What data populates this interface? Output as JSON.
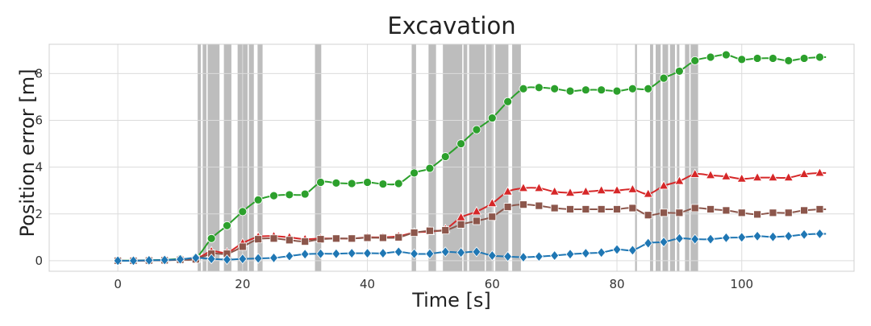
{
  "chart_data": {
    "type": "line",
    "title": "Excavation",
    "xlabel": "Time [s]",
    "ylabel": "Position error [m]",
    "xlim": [
      -11,
      118
    ],
    "ylim": [
      -0.45,
      9.25
    ],
    "xticks": [
      0,
      20,
      40,
      60,
      80,
      100
    ],
    "yticks": [
      0,
      2,
      4,
      6,
      8
    ],
    "grid": true,
    "shaded_intervals": [
      [
        12.8,
        13.3
      ],
      [
        13.6,
        14.2
      ],
      [
        14.4,
        16.3
      ],
      [
        17.0,
        18.2
      ],
      [
        19.2,
        20.8
      ],
      [
        21.0,
        21.8
      ],
      [
        22.4,
        23.2
      ],
      [
        31.6,
        32.6
      ],
      [
        47.1,
        47.8
      ],
      [
        49.8,
        51.0
      ],
      [
        52.1,
        55.2
      ],
      [
        55.4,
        56.0
      ],
      [
        56.3,
        58.8
      ],
      [
        59.0,
        60.2
      ],
      [
        60.5,
        62.6
      ],
      [
        63.2,
        64.6
      ],
      [
        82.9,
        83.2
      ],
      [
        85.3,
        85.8
      ],
      [
        86.2,
        87.0
      ],
      [
        87.3,
        88.2
      ],
      [
        88.5,
        89.3
      ],
      [
        89.6,
        90.0
      ],
      [
        90.9,
        91.6
      ],
      [
        91.8,
        93.0
      ]
    ],
    "series": [
      {
        "color": "#2ca02c",
        "marker": "circle",
        "x": [
          0,
          2.5,
          5,
          7.5,
          10,
          12.5,
          15,
          17.5,
          20,
          22.5,
          25,
          27.5,
          30,
          32.5,
          35,
          37.5,
          40,
          42.5,
          45,
          47.5,
          50,
          52.5,
          55,
          57.5,
          60,
          62.5,
          65,
          67.5,
          70,
          72.5,
          75,
          77.5,
          80,
          82.5,
          85,
          87.5,
          90,
          92.5,
          95,
          97.5,
          100,
          102.5,
          105,
          107.5,
          110,
          112.5
        ],
        "y": [
          0.0,
          0.01,
          0.02,
          0.04,
          0.08,
          0.12,
          0.95,
          1.5,
          2.1,
          2.6,
          2.78,
          2.82,
          2.85,
          3.35,
          3.32,
          3.3,
          3.35,
          3.28,
          3.3,
          3.75,
          3.95,
          4.45,
          5.0,
          5.6,
          6.1,
          6.8,
          7.35,
          7.4,
          7.35,
          7.25,
          7.3,
          7.3,
          7.25,
          7.35,
          7.35,
          7.8,
          8.1,
          8.55,
          8.7,
          8.8,
          8.6,
          8.65,
          8.65,
          8.55,
          8.65,
          8.7
        ]
      },
      {
        "color": "#d62728",
        "marker": "triangle",
        "x": [
          0,
          2.5,
          5,
          7.5,
          10,
          12.5,
          15,
          17.5,
          20,
          22.5,
          25,
          27.5,
          30,
          32.5,
          35,
          37.5,
          40,
          42.5,
          45,
          47.5,
          50,
          52.5,
          55,
          57.5,
          60,
          62.5,
          65,
          67.5,
          70,
          72.5,
          75,
          77.5,
          80,
          82.5,
          85,
          87.5,
          90,
          92.5,
          95,
          97.5,
          100,
          102.5,
          105,
          107.5,
          110,
          112.5
        ],
        "y": [
          0.0,
          0.0,
          0.01,
          0.02,
          0.05,
          0.08,
          0.4,
          0.35,
          0.75,
          1.02,
          1.05,
          1.0,
          0.92,
          0.95,
          0.95,
          0.95,
          1.0,
          1.0,
          1.05,
          1.2,
          1.25,
          1.35,
          1.85,
          2.1,
          2.45,
          2.95,
          3.1,
          3.1,
          2.95,
          2.9,
          2.95,
          3.0,
          3.0,
          3.05,
          2.85,
          3.2,
          3.4,
          3.7,
          3.65,
          3.6,
          3.5,
          3.55,
          3.55,
          3.55,
          3.7,
          3.75
        ]
      },
      {
        "color": "#8c564b",
        "marker": "square",
        "x": [
          0,
          2.5,
          5,
          7.5,
          10,
          12.5,
          15,
          17.5,
          20,
          22.5,
          25,
          27.5,
          30,
          32.5,
          35,
          37.5,
          40,
          42.5,
          45,
          47.5,
          50,
          52.5,
          55,
          57.5,
          60,
          62.5,
          65,
          67.5,
          70,
          72.5,
          75,
          77.5,
          80,
          82.5,
          85,
          87.5,
          90,
          92.5,
          95,
          97.5,
          100,
          102.5,
          105,
          107.5,
          110,
          112.5
        ],
        "y": [
          0.0,
          0.0,
          0.01,
          0.02,
          0.04,
          0.06,
          0.3,
          0.3,
          0.6,
          0.92,
          0.95,
          0.88,
          0.82,
          0.92,
          0.95,
          0.95,
          0.98,
          0.98,
          1.0,
          1.2,
          1.28,
          1.3,
          1.55,
          1.7,
          1.88,
          2.3,
          2.4,
          2.35,
          2.25,
          2.2,
          2.2,
          2.2,
          2.2,
          2.25,
          1.95,
          2.05,
          2.05,
          2.25,
          2.2,
          2.15,
          2.05,
          1.98,
          2.05,
          2.05,
          2.15,
          2.2
        ]
      },
      {
        "color": "#1f77b4",
        "marker": "diamond",
        "x": [
          0,
          2.5,
          5,
          7.5,
          10,
          12.5,
          15,
          17.5,
          20,
          22.5,
          25,
          27.5,
          30,
          32.5,
          35,
          37.5,
          40,
          42.5,
          45,
          47.5,
          50,
          52.5,
          55,
          57.5,
          60,
          62.5,
          65,
          67.5,
          70,
          72.5,
          75,
          77.5,
          80,
          82.5,
          85,
          87.5,
          90,
          92.5,
          95,
          97.5,
          100,
          102.5,
          105,
          107.5,
          110,
          112.5
        ],
        "y": [
          0.0,
          0.0,
          0.02,
          0.03,
          0.06,
          0.12,
          0.08,
          0.05,
          0.08,
          0.1,
          0.12,
          0.2,
          0.28,
          0.3,
          0.3,
          0.32,
          0.32,
          0.32,
          0.38,
          0.3,
          0.3,
          0.38,
          0.35,
          0.38,
          0.22,
          0.18,
          0.15,
          0.18,
          0.22,
          0.28,
          0.32,
          0.35,
          0.48,
          0.45,
          0.75,
          0.8,
          0.95,
          0.92,
          0.92,
          0.98,
          1.0,
          1.05,
          1.02,
          1.05,
          1.12,
          1.15
        ]
      }
    ]
  }
}
